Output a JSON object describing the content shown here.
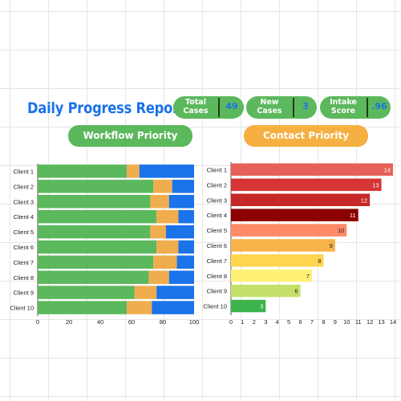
{
  "title": "Daily Progress Report",
  "stats": [
    {
      "label_line1": "Total",
      "label_line2": "Cases",
      "value": "49"
    },
    {
      "label_line1": "New",
      "label_line2": "Cases",
      "value": "3"
    },
    {
      "label_line1": "Intake",
      "label_line2": "Score",
      "value": ".96"
    }
  ],
  "workflow_header": "Workflow Priority",
  "contact_header": "Contact Priority",
  "colors": {
    "title": "#1a73e8",
    "workflow_pill": "#5cb85c",
    "contact_pill": "#f5b041",
    "stack": [
      "#5cb85c",
      "#f0ad4e",
      "#1a73e8"
    ],
    "contact_bars": [
      "#e8605a",
      "#d73535",
      "#c62828",
      "#8b0000",
      "#ff8a65",
      "#f7b24a",
      "#ffd54f",
      "#fff176",
      "#c5e06a",
      "#3cb44b"
    ]
  },
  "chart_data": [
    {
      "type": "bar",
      "orientation": "horizontal",
      "stacked": true,
      "categories": [
        "Client 1",
        "Client 2",
        "Client 3",
        "Client 4",
        "Client 5",
        "Client 6",
        "Client 7",
        "Client 8",
        "Client 9",
        "Client 10"
      ],
      "series": [
        {
          "values": [
            57,
            74,
            72,
            76,
            72,
            76,
            74,
            71,
            62,
            57
          ]
        },
        {
          "values": [
            8,
            12,
            12,
            14,
            10,
            14,
            15,
            13,
            14,
            16
          ]
        },
        {
          "values": [
            35,
            14,
            16,
            10,
            18,
            10,
            11,
            16,
            24,
            27
          ]
        }
      ],
      "xlim": [
        0,
        100
      ],
      "xticks": [
        0,
        20,
        40,
        60,
        80,
        100
      ]
    },
    {
      "type": "bar",
      "orientation": "horizontal",
      "categories": [
        "Client 1",
        "Client 2",
        "Client 3",
        "Client 4",
        "Client 5",
        "Client 6",
        "Client 7",
        "Client 8",
        "Client 9",
        "Client 10"
      ],
      "values": [
        14,
        13,
        12,
        11,
        10,
        9,
        8,
        7,
        6,
        3
      ],
      "data_labels": [
        "14",
        "13",
        "12",
        "11",
        "10",
        "9",
        "8",
        "7",
        "6",
        "3"
      ],
      "xlim": [
        0,
        14
      ],
      "xticks": [
        0,
        1,
        2,
        3,
        4,
        5,
        6,
        7,
        8,
        9,
        10,
        11,
        12,
        13,
        14
      ]
    }
  ]
}
